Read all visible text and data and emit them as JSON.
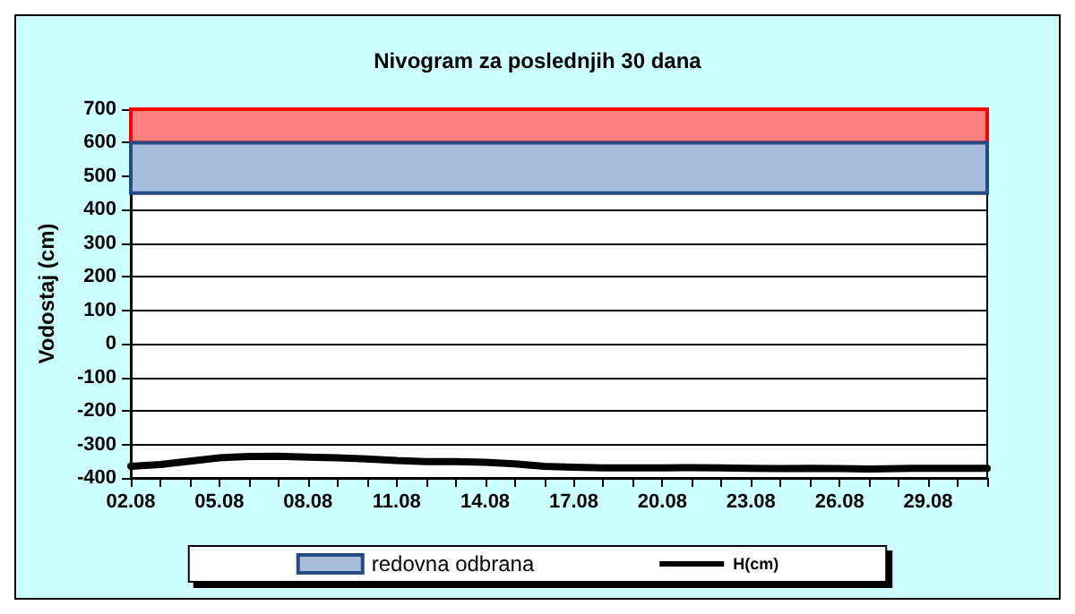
{
  "chart_data": {
    "type": "line",
    "title": "Nivogram za poslednjih 30 dana",
    "ylabel": "Vodostaj (cm)",
    "categories": [
      "02.08",
      null,
      null,
      "05.08",
      null,
      null,
      "08.08",
      null,
      null,
      "11.08",
      null,
      null,
      "14.08",
      null,
      null,
      "17.08",
      null,
      null,
      "20.08",
      null,
      null,
      "23.08",
      null,
      null,
      "26.08",
      null,
      null,
      "29.08",
      null,
      null
    ],
    "series": [
      {
        "name": "H(cm)",
        "color": "#000000",
        "values": [
          -365,
          -360,
          -350,
          -340,
          -336,
          -335,
          -338,
          -340,
          -343,
          -348,
          -351,
          -351,
          -353,
          -358,
          -365,
          -368,
          -370,
          -370,
          -370,
          -369,
          -370,
          -371,
          -372,
          -371,
          -372,
          -373,
          -372,
          -371,
          -371,
          -371
        ]
      }
    ],
    "bands": [
      {
        "axis": "y",
        "from": 600,
        "to": 700,
        "color": "#ff8080"
      },
      {
        "axis": "y",
        "from": 450,
        "to": 600,
        "color": "#a6bddb",
        "label": "redovna odbrana"
      }
    ],
    "ylim": [
      -400,
      700
    ],
    "yticks": [
      -400,
      -300,
      -200,
      -100,
      0,
      100,
      200,
      300,
      400,
      500,
      600,
      700
    ],
    "grid": "y",
    "legend": "bottom",
    "marker": "none",
    "line_style": "solid"
  }
}
